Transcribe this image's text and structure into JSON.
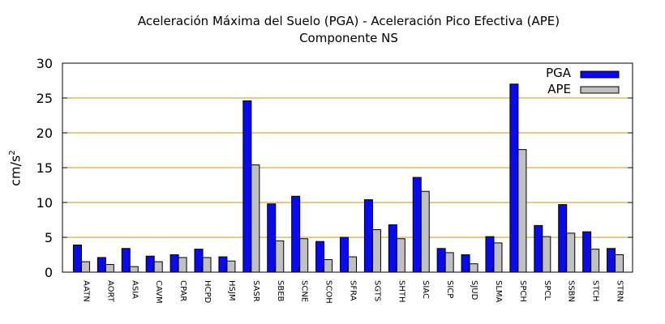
{
  "colors": {
    "pga": "#0a0aee",
    "ape": "#c0c0c0",
    "grid": "#cc9900",
    "axis": "#000000"
  },
  "chart_data": {
    "type": "bar",
    "title": "Aceleración Máxima del Suelo (PGA) -  Aceleración Pico Efectiva (APE)",
    "subtitle": "Componente NS",
    "ylabel": "cm/s",
    "ylabel_sup": "2",
    "ylim": [
      0,
      30
    ],
    "yticks": [
      0,
      5,
      10,
      15,
      20,
      25,
      30
    ],
    "grid": true,
    "legend_position": "top-right",
    "categories": [
      "AATN",
      "AORT",
      "ASIA",
      "CAVM",
      "CPAR",
      "HCPD",
      "HSJM",
      "SASR",
      "SBEB",
      "SCNE",
      "SCOH",
      "SFRA",
      "SGTS",
      "SHTH",
      "SIAC",
      "SICP",
      "SJUD",
      "SLMA",
      "SPCH",
      "SPCL",
      "SSBN",
      "STCH",
      "STRN"
    ],
    "series": [
      {
        "name": "PGA",
        "values": [
          3.9,
          2.1,
          3.4,
          2.3,
          2.5,
          3.3,
          2.2,
          24.6,
          9.8,
          10.9,
          4.4,
          5.0,
          10.4,
          6.8,
          13.6,
          3.4,
          2.5,
          5.1,
          27.0,
          6.7,
          9.7,
          5.8,
          3.4
        ]
      },
      {
        "name": "APE",
        "values": [
          1.5,
          1.1,
          0.8,
          1.5,
          2.1,
          2.1,
          1.6,
          15.4,
          4.5,
          4.8,
          1.8,
          2.2,
          6.1,
          4.8,
          11.6,
          2.8,
          1.2,
          4.2,
          17.6,
          5.1,
          5.6,
          3.3,
          2.5
        ]
      }
    ]
  }
}
